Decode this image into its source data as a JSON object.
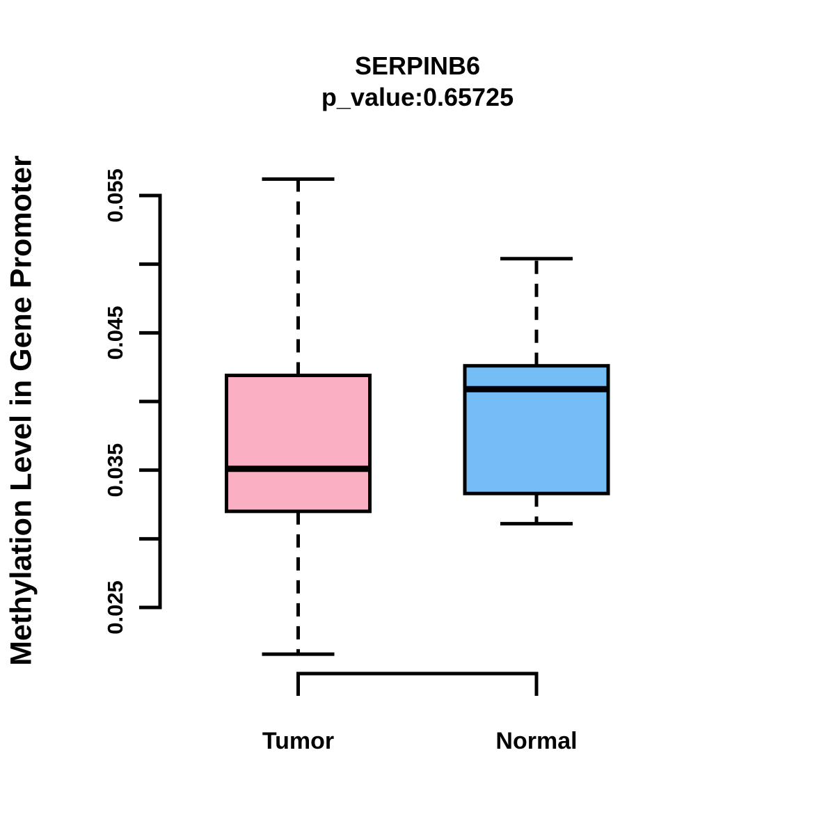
{
  "chart_data": {
    "type": "boxplot",
    "title": "SERPINB6",
    "subtitle": "p_value:0.65725",
    "p_value": 0.65725,
    "ylabel": "Methylation Level in Gene Promoter",
    "xlabel": "",
    "ylim": [
      0.025,
      0.055
    ],
    "yticks": [
      0.025,
      0.03,
      0.035,
      0.04,
      0.045,
      0.05,
      0.055
    ],
    "ytick_labeled": [
      0.025,
      0.035,
      0.045,
      0.055
    ],
    "ytick_label_format": "3dp",
    "ytick_label_rotation": -90,
    "categories": [
      "Tumor",
      "Normal"
    ],
    "series": [
      {
        "name": "Tumor",
        "fill_color": "#FBAFC3",
        "whisker_low": 0.0216,
        "q1": 0.032,
        "median": 0.0351,
        "q3": 0.0419,
        "whisker_high": 0.0562
      },
      {
        "name": "Normal",
        "fill_color": "#74BEF5",
        "whisker_low": 0.0311,
        "q1": 0.0333,
        "median": 0.0409,
        "q3": 0.0426,
        "whisker_high": 0.0504
      }
    ],
    "whisker_style": "dashed",
    "grid": false,
    "legend_position": "none",
    "line_color": "#000000",
    "background_color": "#FFFFFF"
  }
}
